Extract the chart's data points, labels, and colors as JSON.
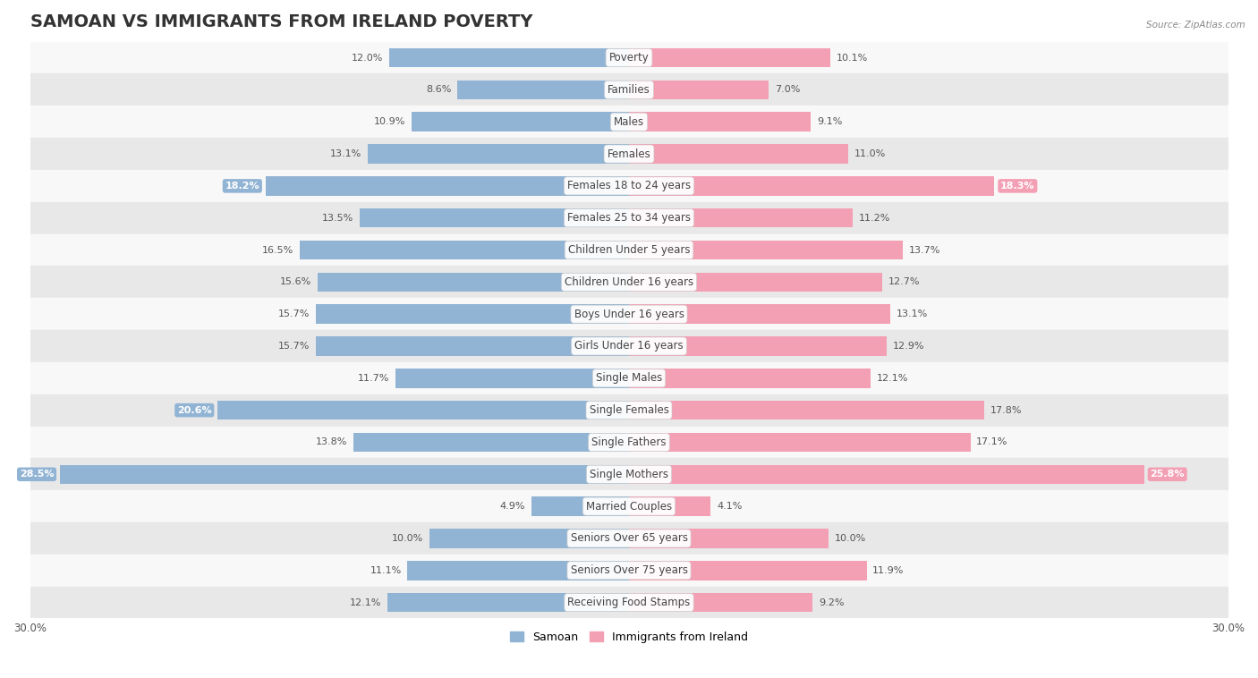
{
  "title": "SAMOAN VS IMMIGRANTS FROM IRELAND POVERTY",
  "source": "Source: ZipAtlas.com",
  "categories": [
    "Poverty",
    "Families",
    "Males",
    "Females",
    "Females 18 to 24 years",
    "Females 25 to 34 years",
    "Children Under 5 years",
    "Children Under 16 years",
    "Boys Under 16 years",
    "Girls Under 16 years",
    "Single Males",
    "Single Females",
    "Single Fathers",
    "Single Mothers",
    "Married Couples",
    "Seniors Over 65 years",
    "Seniors Over 75 years",
    "Receiving Food Stamps"
  ],
  "samoan_values": [
    12.0,
    8.6,
    10.9,
    13.1,
    18.2,
    13.5,
    16.5,
    15.6,
    15.7,
    15.7,
    11.7,
    20.6,
    13.8,
    28.5,
    4.9,
    10.0,
    11.1,
    12.1
  ],
  "ireland_values": [
    10.1,
    7.0,
    9.1,
    11.0,
    18.3,
    11.2,
    13.7,
    12.7,
    13.1,
    12.9,
    12.1,
    17.8,
    17.1,
    25.8,
    4.1,
    10.0,
    11.9,
    9.2
  ],
  "samoan_color": "#92b4d4",
  "ireland_color": "#f4a0b4",
  "highlight_samoan": [
    4,
    11,
    13
  ],
  "highlight_ireland": [
    4,
    13
  ],
  "axis_limit": 30.0,
  "bar_height": 0.6,
  "background_color": "#f0f0f0",
  "row_color_light": "#f8f8f8",
  "row_color_dark": "#e8e8e8",
  "legend_samoan": "Samoan",
  "legend_ireland": "Immigrants from Ireland",
  "title_fontsize": 14,
  "label_fontsize": 8.5,
  "value_fontsize": 8,
  "axis_fontsize": 8.5
}
